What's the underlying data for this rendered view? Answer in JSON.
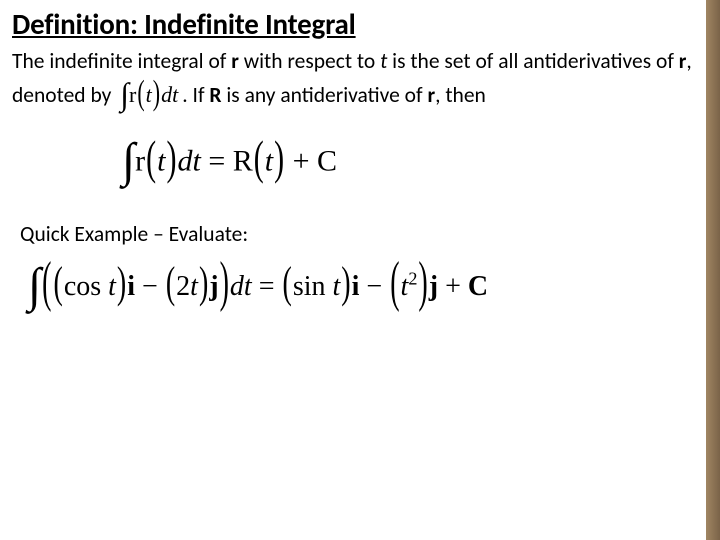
{
  "title": "Definition: Indefinite Integral",
  "para": {
    "p1": "The indefinite integral of ",
    "r1": "r",
    "p2": " with respect to ",
    "t1": "t",
    "p3": " is the set of all antiderivatives of ",
    "r2": "r",
    "p4": ", denoted by ",
    "p5": ".  If ",
    "R1": "R",
    "p6": " is any antiderivative of ",
    "r3": "r",
    "p7": ", then"
  },
  "inline_integral": {
    "r": "r",
    "lp": "(",
    "t": "t",
    "rp": ")",
    "dt": "dt"
  },
  "eq1": {
    "r": "r",
    "lp": "(",
    "t1": "t",
    "rp": ")",
    "dt": "dt",
    "eq": " = ",
    "R": "R",
    "lp2": "(",
    "t2": "t",
    "rp2": ")",
    "plusC": " + C"
  },
  "example_label": "Quick Example – Evaluate:",
  "eq2": {
    "cos": "cos",
    "t1": "t",
    "i1": "i",
    "minus": " − ",
    "two": "2",
    "t2": "t",
    "j1": "j",
    "dt": "dt",
    "eq": "  = ",
    "sin": "sin",
    "t3": "t",
    "i2": "i",
    "t4": "t",
    "sq": "2",
    "j2": "j",
    "plusC": " + ",
    "C": "C"
  }
}
